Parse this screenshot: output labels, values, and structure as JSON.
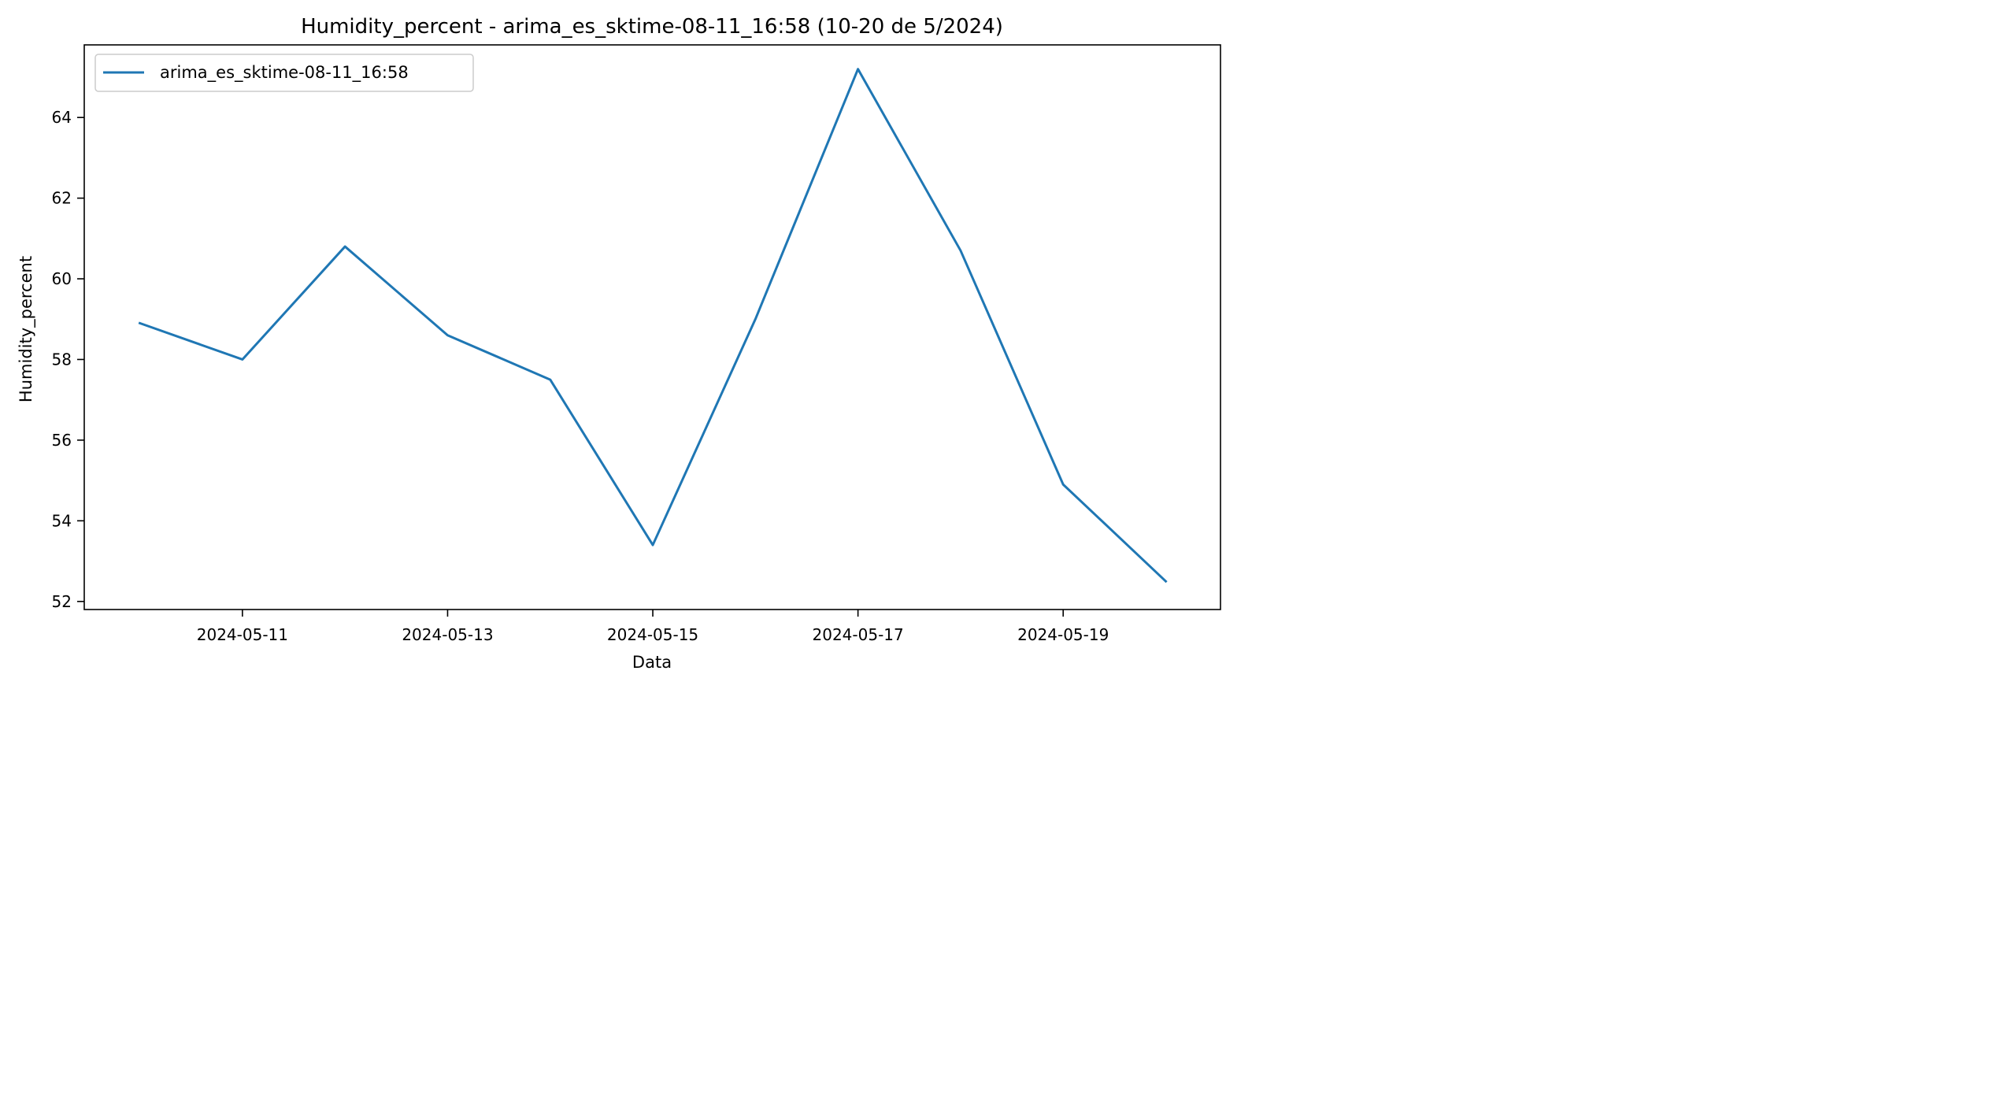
{
  "chart_data": {
    "type": "line",
    "title": "Humidity_percent - arima_es_sktime-08-11_16:58 (10-20 de 5/2024)",
    "xlabel": "Data",
    "ylabel": "Humidity_percent",
    "x": [
      "2024-05-10",
      "2024-05-11",
      "2024-05-12",
      "2024-05-13",
      "2024-05-14",
      "2024-05-15",
      "2024-05-16",
      "2024-05-17",
      "2024-05-18",
      "2024-05-19",
      "2024-05-20"
    ],
    "series": [
      {
        "name": "arima_es_sktime-08-11_16:58",
        "color": "#1f77b4",
        "values": [
          58.9,
          58.0,
          60.8,
          58.6,
          57.5,
          53.4,
          59.0,
          65.2,
          60.7,
          54.9,
          52.5
        ]
      }
    ],
    "x_ticks": [
      "2024-05-11",
      "2024-05-13",
      "2024-05-15",
      "2024-05-17",
      "2024-05-19"
    ],
    "y_ticks": [
      52,
      54,
      56,
      58,
      60,
      62,
      64
    ],
    "xlim": [
      "2024-05-09T11:00",
      "2024-05-20T12:48"
    ],
    "ylim": [
      51.8,
      65.8
    ],
    "grid": false,
    "legend_position": "upper-left"
  }
}
